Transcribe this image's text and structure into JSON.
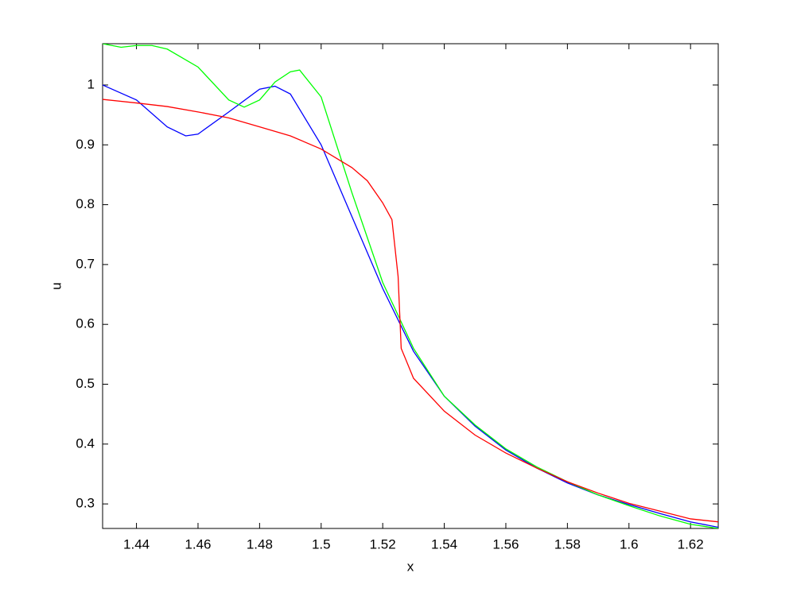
{
  "chart_data": {
    "type": "line",
    "x_label": "x",
    "y_label": "u",
    "xlim": [
      1.429,
      1.629
    ],
    "ylim": [
      0.259,
      1.069
    ],
    "xticks": [
      1.44,
      1.46,
      1.48,
      1.5,
      1.52,
      1.54,
      1.56,
      1.58,
      1.6,
      1.62
    ],
    "yticks": [
      0.3,
      0.4,
      0.5,
      0.6,
      0.7,
      0.8,
      0.9,
      1
    ],
    "grid": false,
    "series": [
      {
        "color": "#0000ff",
        "x": [
          1.429,
          1.44,
          1.45,
          1.456,
          1.46,
          1.47,
          1.48,
          1.485,
          1.49,
          1.5,
          1.51,
          1.52,
          1.53,
          1.54,
          1.55,
          1.56,
          1.57,
          1.58,
          1.59,
          1.6,
          1.61,
          1.62,
          1.629
        ],
        "values": [
          1.0,
          0.975,
          0.93,
          0.915,
          0.918,
          0.955,
          0.993,
          0.998,
          0.985,
          0.9,
          0.78,
          0.66,
          0.555,
          0.48,
          0.43,
          0.39,
          0.36,
          0.335,
          0.315,
          0.299,
          0.284,
          0.27,
          0.261
        ]
      },
      {
        "color": "#00ff00",
        "x": [
          1.429,
          1.435,
          1.44,
          1.445,
          1.45,
          1.46,
          1.47,
          1.475,
          1.48,
          1.485,
          1.49,
          1.493,
          1.5,
          1.505,
          1.51,
          1.52,
          1.53,
          1.54,
          1.55,
          1.56,
          1.57,
          1.58,
          1.59,
          1.6,
          1.61,
          1.62,
          1.629
        ],
        "values": [
          1.069,
          1.063,
          1.066,
          1.066,
          1.06,
          1.03,
          0.975,
          0.963,
          0.975,
          1.005,
          1.022,
          1.025,
          0.98,
          0.9,
          0.82,
          0.67,
          0.56,
          0.48,
          0.432,
          0.392,
          0.362,
          0.337,
          0.315,
          0.297,
          0.28,
          0.266,
          0.259
        ]
      },
      {
        "color": "#ff0000",
        "x": [
          1.429,
          1.44,
          1.45,
          1.46,
          1.47,
          1.48,
          1.49,
          1.5,
          1.51,
          1.515,
          1.52,
          1.523,
          1.525,
          1.526,
          1.53,
          1.54,
          1.55,
          1.56,
          1.57,
          1.58,
          1.59,
          1.6,
          1.61,
          1.62,
          1.629
        ],
        "values": [
          0.976,
          0.97,
          0.964,
          0.955,
          0.945,
          0.93,
          0.915,
          0.893,
          0.862,
          0.84,
          0.803,
          0.775,
          0.68,
          0.56,
          0.51,
          0.455,
          0.415,
          0.385,
          0.36,
          0.337,
          0.318,
          0.301,
          0.288,
          0.275,
          0.27
        ]
      }
    ]
  }
}
